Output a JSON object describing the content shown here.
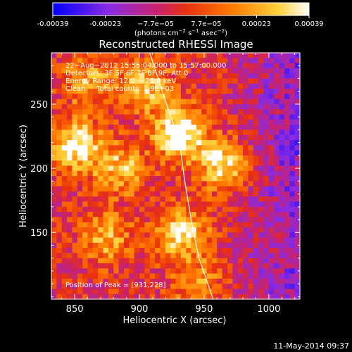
{
  "footer_timestamp": "11-May-2014 09:37",
  "colorbar": {
    "ticks": [
      "-0.00039",
      "-0.00023",
      "−7.7e−05",
      "7.7e−05",
      "0.00023",
      "0.00039"
    ],
    "tick_values": [
      -0.00039,
      -0.00023,
      -7.7e-05,
      7.7e-05,
      0.00023,
      0.00039
    ],
    "range": [
      -0.00039,
      0.00039
    ],
    "unit_prefix": "(photons cm",
    "unit_exp1": "−2",
    "unit_mid": " s",
    "unit_exp2": "−1",
    "unit_mid2": " asec",
    "unit_exp3": "−2",
    "unit_suffix": ")",
    "colors": [
      "#0000ff",
      "#8a2be2",
      "#cc2266",
      "#e83010",
      "#ff7a00",
      "#ffd23a",
      "#ffffff"
    ]
  },
  "annotations": {
    "line1": "22−Aug−2012 15:55:04.000 to 15:57:00.000",
    "line2": "Detectors: 3F 5F 6F 7F 8F 9F, Att 0",
    "line3": "Energy Range: 12.0 − 25.0 keV",
    "line4": "Clean     Total counts: 1.9E+03",
    "peak": "Position of Peak = [931,228]"
  },
  "chart_data": {
    "type": "heatmap",
    "title": "Reconstructed RHESSI Image",
    "xlabel": "Heliocentric X (arcsec)",
    "ylabel": "Heliocentric Y (arcsec)",
    "xlim": [
      832,
      1024
    ],
    "ylim": [
      98,
      290
    ],
    "x_ticks": [
      850,
      900,
      950,
      1000
    ],
    "y_ticks": [
      150,
      200,
      250
    ],
    "x_tick_labels": [
      "850",
      "900",
      "950",
      "1000"
    ],
    "y_tick_labels": [
      "150",
      "200",
      "250"
    ],
    "peak_position": [
      931,
      228
    ],
    "sources": [
      {
        "x": 931,
        "y": 228,
        "intensity": 1.0
      },
      {
        "x": 850,
        "y": 218,
        "intensity": 0.85
      },
      {
        "x": 966,
        "y": 203,
        "intensity": 0.8
      },
      {
        "x": 933,
        "y": 150,
        "intensity": 0.75
      },
      {
        "x": 885,
        "y": 200,
        "intensity": 0.6
      },
      {
        "x": 875,
        "y": 145,
        "intensity": 0.55
      },
      {
        "x": 905,
        "y": 265,
        "intensity": 0.6
      },
      {
        "x": 862,
        "y": 268,
        "intensity": 0.5
      },
      {
        "x": 945,
        "y": 110,
        "intensity": 0.45
      }
    ],
    "limb_line": [
      [
        908,
        290
      ],
      [
        921,
        250
      ],
      [
        931,
        220
      ],
      [
        935,
        190
      ],
      [
        940,
        160
      ],
      [
        946,
        130
      ],
      [
        957,
        98
      ]
    ],
    "grid": false
  }
}
